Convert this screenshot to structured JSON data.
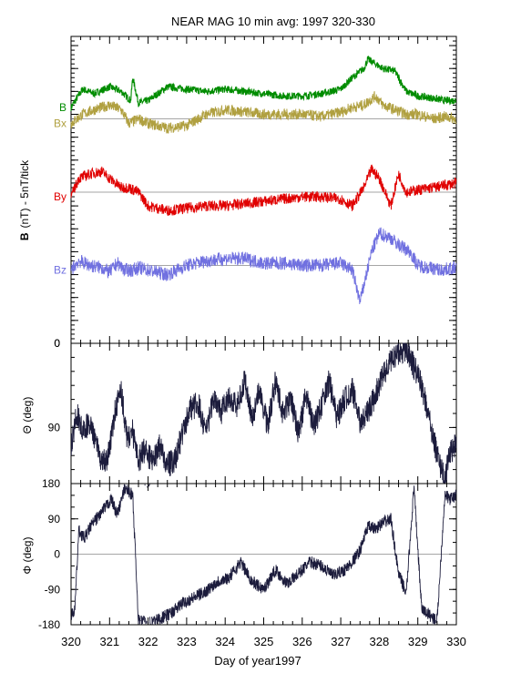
{
  "title": "NEAR MAG 10 min avg: 1997 320-330",
  "xlabel_prefix": "Day of year",
  "xlabel_year": "1997",
  "colors": {
    "B": "#008c00",
    "Bx": "#b0a040",
    "By": "#e00000",
    "Bz": "#7070e0",
    "angles": "#1c1c3c",
    "zero_line": "#888888"
  },
  "chart_data": [
    {
      "type": "line",
      "panel": "field",
      "ylabel_bold": "B",
      "ylabel_rest": "(nT) - 5nT/tick",
      "xlim": [
        320,
        330
      ],
      "ylim": [
        0,
        67
      ],
      "grid": false,
      "series": [
        {
          "name": "B",
          "offset": 52,
          "x": [
            320,
            320.3,
            320.6,
            321,
            321.3,
            321.55,
            321.6,
            321.75,
            322,
            322.5,
            323,
            323.5,
            324,
            324.5,
            325,
            325.5,
            326,
            326.5,
            327,
            327.3,
            327.6,
            327.7,
            327.9,
            328.1,
            328.4,
            328.7,
            329,
            329.4,
            329.7,
            330
          ],
          "values": [
            51.5,
            55.5,
            54.5,
            56,
            55,
            53,
            58,
            52.5,
            53,
            56,
            55.5,
            55,
            55.5,
            55,
            54.5,
            54,
            54,
            54.5,
            55.5,
            58,
            60,
            62,
            61,
            60,
            59.5,
            55,
            54,
            53.5,
            53,
            53
          ]
        },
        {
          "name": "Bx",
          "offset": 49,
          "x": [
            320,
            320.3,
            320.6,
            321,
            321.3,
            321.5,
            321.75,
            322,
            322.5,
            323,
            323.5,
            324,
            324.5,
            325,
            325.5,
            326,
            326.5,
            327,
            327.3,
            327.6,
            327.9,
            328.1,
            328.4,
            328.7,
            329,
            329.4,
            329.7,
            330
          ],
          "values": [
            48,
            50,
            51,
            52,
            51,
            48,
            49,
            48,
            47,
            47.5,
            50,
            51,
            50.5,
            50,
            50,
            50,
            49.5,
            50.5,
            51.5,
            52,
            54,
            52,
            51,
            50,
            50,
            49,
            49.5,
            49
          ]
        },
        {
          "name": "By",
          "offset": 33,
          "x": [
            320,
            320.2,
            320.5,
            320.8,
            321,
            321.3,
            321.5,
            321.75,
            322,
            322.5,
            323,
            323.5,
            324,
            324.5,
            325,
            325.5,
            326,
            326.5,
            327,
            327.3,
            327.6,
            327.8,
            328,
            328.3,
            328.5,
            328.7,
            329,
            329.4,
            329.7,
            330
          ],
          "values": [
            32,
            36,
            37,
            37.5,
            36,
            34,
            34,
            33,
            30,
            29,
            29.5,
            30,
            30,
            30.5,
            31,
            31.5,
            32,
            32,
            31.5,
            30,
            34,
            38,
            36,
            30,
            37,
            33,
            33.5,
            34,
            34.5,
            35
          ]
        },
        {
          "name": "Bz",
          "offset": 17,
          "x": [
            320,
            320.2,
            320.5,
            320.8,
            321,
            321.2,
            321.4,
            321.6,
            321.75,
            322,
            322.5,
            323,
            323.5,
            324,
            324.5,
            325,
            325.5,
            326,
            326.5,
            327,
            327.3,
            327.5,
            327.8,
            328,
            328.3,
            328.5,
            328.8,
            329,
            329.3,
            329.6,
            330
          ],
          "values": [
            16,
            18,
            17,
            16.5,
            15.5,
            17.5,
            16,
            16,
            16.5,
            16,
            15,
            17,
            18,
            18.5,
            18.5,
            17.5,
            17.5,
            17,
            17,
            17.5,
            16,
            9,
            20,
            24,
            23,
            21.5,
            20,
            17,
            16.5,
            16,
            16.5
          ]
        }
      ]
    },
    {
      "type": "line",
      "panel": "theta",
      "ylabel": "Θ (deg)",
      "ylim": [
        0,
        150
      ],
      "yticks": [
        0,
        90
      ],
      "xlim": [
        320,
        330
      ],
      "series": [
        {
          "x": [
            320,
            320.15,
            320.3,
            320.45,
            320.6,
            320.75,
            320.9,
            321,
            321.15,
            321.3,
            321.45,
            321.6,
            321.75,
            321.9,
            322,
            322.15,
            322.3,
            322.5,
            322.7,
            322.9,
            323.1,
            323.3,
            323.5,
            323.7,
            323.9,
            324.1,
            324.3,
            324.5,
            324.7,
            324.9,
            325.1,
            325.3,
            325.5,
            325.7,
            325.9,
            326.1,
            326.3,
            326.5,
            326.7,
            326.9,
            327.1,
            327.3,
            327.5,
            327.7,
            327.9,
            328.1,
            328.3,
            328.5,
            328.7,
            328.9,
            329.1,
            329.3,
            329.5,
            329.7,
            329.85,
            330
          ],
          "values": [
            110,
            75,
            95,
            85,
            100,
            120,
            130,
            112,
            70,
            50,
            100,
            95,
            125,
            115,
            120,
            125,
            110,
            130,
            125,
            95,
            70,
            65,
            95,
            60,
            75,
            55,
            70,
            40,
            80,
            50,
            90,
            40,
            75,
            60,
            95,
            55,
            90,
            65,
            40,
            80,
            60,
            50,
            85,
            75,
            55,
            35,
            20,
            10,
            5,
            25,
            45,
            80,
            120,
            145,
            115,
            110
          ]
        }
      ]
    },
    {
      "type": "line",
      "panel": "phi",
      "ylabel": "Φ (deg)",
      "ylim": [
        -180,
        180
      ],
      "yticks": [
        -180,
        -90,
        0,
        90,
        180
      ],
      "xlim": [
        320,
        330
      ],
      "xticks": [
        320,
        321,
        322,
        323,
        324,
        325,
        326,
        327,
        328,
        329,
        330
      ],
      "series": [
        {
          "x": [
            320,
            320.1,
            320.2,
            320.35,
            320.5,
            320.7,
            320.9,
            321.05,
            321.2,
            321.4,
            321.6,
            321.75,
            322,
            322.3,
            322.6,
            322.9,
            323.2,
            323.5,
            323.8,
            324.1,
            324.4,
            324.7,
            325,
            325.3,
            325.6,
            325.9,
            326.2,
            326.5,
            326.8,
            327.1,
            327.3,
            327.5,
            327.7,
            327.9,
            328.1,
            328.3,
            328.5,
            328.7,
            328.9,
            329.1,
            329.3,
            329.5,
            329.7,
            329.85,
            330
          ],
          "values": [
            -160,
            -140,
            60,
            40,
            70,
            95,
            120,
            140,
            100,
            170,
            150,
            -170,
            -175,
            -165,
            -150,
            -125,
            -110,
            -95,
            -70,
            -60,
            -20,
            -70,
            -90,
            -40,
            -75,
            -50,
            -20,
            -30,
            -55,
            -40,
            -20,
            10,
            70,
            65,
            80,
            90,
            -50,
            -100,
            170,
            -140,
            -155,
            -170,
            150,
            140,
            150
          ]
        }
      ]
    }
  ]
}
